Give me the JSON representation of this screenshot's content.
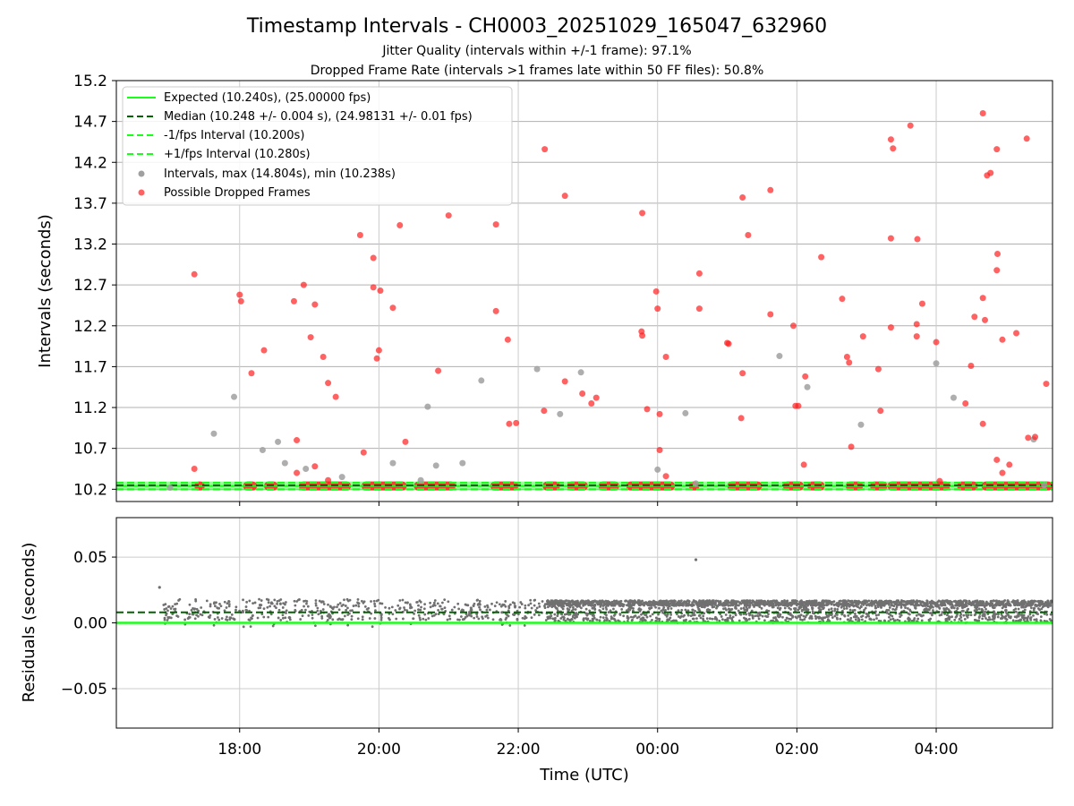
{
  "figure": {
    "title": "Timestamp Intervals - CH0003_20251029_165047_632960",
    "subtitle1": "Jitter Quality (intervals within +/-1 frame): 97.1%",
    "subtitle2": "Dropped Frame Rate (intervals >1 frames late within 50 FF files): 50.8%"
  },
  "colors": {
    "expected": "#1aff1a",
    "median": "#006400",
    "intervals": "#a0a0a0",
    "dropped": "#ff2020",
    "residuals": "#707070",
    "grid": "#b0b0b0"
  },
  "chart_data": [
    {
      "type": "scatter",
      "title": "Timestamp Intervals",
      "xlabel": "",
      "ylabel": "Intervals (seconds)",
      "xlim_hours": [
        16.23,
        29.67
      ],
      "ylim": [
        10.05,
        15.2
      ],
      "y_ticks": [
        "10.2",
        "10.7",
        "11.2",
        "11.7",
        "12.2",
        "12.7",
        "13.2",
        "13.7",
        "14.2",
        "14.7",
        "15.2"
      ],
      "y_tick_values": [
        10.2,
        10.7,
        11.2,
        11.7,
        12.2,
        12.7,
        13.2,
        13.7,
        14.2,
        14.7,
        15.2
      ],
      "x_ticks": [
        "18:00",
        "20:00",
        "22:00",
        "00:00",
        "02:00",
        "04:00"
      ],
      "x_tick_values": [
        18,
        20,
        22,
        24,
        26,
        28
      ],
      "legend_position": "top-left",
      "legend": [
        {
          "label": "Expected (10.240s), (25.00000 fps)",
          "style": "solid",
          "color": "#1aff1a"
        },
        {
          "label": "Median (10.248 +/- 0.004 s), (24.98131 +/- 0.01 fps)",
          "style": "dashed",
          "color": "#006400"
        },
        {
          "label": "-1/fps Interval (10.200s)",
          "style": "dashed",
          "color": "#1aff1a"
        },
        {
          "label": "+1/fps Interval (10.280s)",
          "style": "dashed",
          "color": "#1aff1a"
        },
        {
          "label": "Intervals, max (14.804s), min (10.238s)",
          "style": "marker",
          "color": "#a0a0a0"
        },
        {
          "label": "Possible Dropped Frames",
          "style": "marker",
          "color": "#ff2020"
        }
      ],
      "lines": {
        "expected": 10.24,
        "median": 10.248,
        "minus_one": 10.2,
        "plus_one": 10.28
      },
      "baseline_y": 10.24,
      "baseline_gray_spans": [
        [
          16.23,
          17.4
        ],
        [
          17.4,
          18.0
        ],
        [
          18.0,
          30.0
        ]
      ],
      "baseline_red_spans": [
        [
          17.35,
          17.5
        ],
        [
          18.05,
          18.25
        ],
        [
          18.35,
          18.55
        ],
        [
          18.85,
          19.6
        ],
        [
          19.75,
          20.4
        ],
        [
          20.5,
          21.1
        ],
        [
          21.6,
          22.0
        ],
        [
          22.35,
          22.6
        ],
        [
          22.7,
          23.0
        ],
        [
          23.15,
          23.45
        ],
        [
          23.55,
          24.25
        ],
        [
          24.45,
          24.6
        ],
        [
          25.0,
          25.5
        ],
        [
          25.8,
          26.1
        ],
        [
          26.15,
          26.4
        ],
        [
          26.7,
          26.95
        ],
        [
          27.05,
          27.3
        ],
        [
          27.3,
          28.2
        ],
        [
          28.3,
          28.6
        ],
        [
          28.65,
          29.67
        ]
      ],
      "gray_points": [
        {
          "x": 17.0,
          "y": 10.22
        },
        {
          "x": 17.63,
          "y": 10.88
        },
        {
          "x": 17.92,
          "y": 11.33
        },
        {
          "x": 18.33,
          "y": 10.68
        },
        {
          "x": 18.55,
          "y": 10.78
        },
        {
          "x": 18.65,
          "y": 10.52
        },
        {
          "x": 18.95,
          "y": 10.45
        },
        {
          "x": 19.47,
          "y": 10.35
        },
        {
          "x": 20.2,
          "y": 10.52
        },
        {
          "x": 20.6,
          "y": 10.31
        },
        {
          "x": 20.7,
          "y": 11.21
        },
        {
          "x": 20.82,
          "y": 10.49
        },
        {
          "x": 21.2,
          "y": 10.52
        },
        {
          "x": 21.47,
          "y": 11.53
        },
        {
          "x": 22.27,
          "y": 11.67
        },
        {
          "x": 22.6,
          "y": 11.12
        },
        {
          "x": 22.9,
          "y": 11.63
        },
        {
          "x": 24.0,
          "y": 10.44
        },
        {
          "x": 24.4,
          "y": 11.13
        },
        {
          "x": 24.55,
          "y": 10.27
        },
        {
          "x": 25.75,
          "y": 11.83
        },
        {
          "x": 26.15,
          "y": 11.45
        },
        {
          "x": 26.92,
          "y": 10.99
        },
        {
          "x": 28.0,
          "y": 11.74
        },
        {
          "x": 28.25,
          "y": 11.32
        },
        {
          "x": 29.4,
          "y": 10.81
        },
        {
          "x": 29.55,
          "y": 10.25
        }
      ],
      "dropped_points": [
        {
          "x": 17.35,
          "y": 12.83
        },
        {
          "x": 17.35,
          "y": 10.45
        },
        {
          "x": 18.0,
          "y": 12.58
        },
        {
          "x": 18.02,
          "y": 12.5
        },
        {
          "x": 18.17,
          "y": 11.62
        },
        {
          "x": 18.35,
          "y": 11.9
        },
        {
          "x": 18.78,
          "y": 12.5
        },
        {
          "x": 18.82,
          "y": 10.8
        },
        {
          "x": 18.82,
          "y": 10.4
        },
        {
          "x": 18.92,
          "y": 12.7
        },
        {
          "x": 19.02,
          "y": 12.06
        },
        {
          "x": 19.08,
          "y": 12.46
        },
        {
          "x": 19.08,
          "y": 10.48
        },
        {
          "x": 19.2,
          "y": 11.82
        },
        {
          "x": 19.27,
          "y": 11.5
        },
        {
          "x": 19.27,
          "y": 10.31
        },
        {
          "x": 19.38,
          "y": 11.33
        },
        {
          "x": 19.73,
          "y": 13.31
        },
        {
          "x": 19.78,
          "y": 10.65
        },
        {
          "x": 19.92,
          "y": 13.03
        },
        {
          "x": 19.92,
          "y": 12.67
        },
        {
          "x": 19.97,
          "y": 11.8
        },
        {
          "x": 20.0,
          "y": 11.9
        },
        {
          "x": 20.02,
          "y": 12.63
        },
        {
          "x": 20.2,
          "y": 12.42
        },
        {
          "x": 20.3,
          "y": 13.43
        },
        {
          "x": 20.38,
          "y": 10.78
        },
        {
          "x": 20.85,
          "y": 11.65
        },
        {
          "x": 21.0,
          "y": 13.55
        },
        {
          "x": 21.68,
          "y": 13.44
        },
        {
          "x": 21.68,
          "y": 12.38
        },
        {
          "x": 21.85,
          "y": 12.03
        },
        {
          "x": 21.87,
          "y": 11.0
        },
        {
          "x": 21.97,
          "y": 11.01
        },
        {
          "x": 22.38,
          "y": 14.36
        },
        {
          "x": 22.37,
          "y": 11.16
        },
        {
          "x": 22.67,
          "y": 13.79
        },
        {
          "x": 22.67,
          "y": 11.52
        },
        {
          "x": 22.92,
          "y": 11.37
        },
        {
          "x": 23.05,
          "y": 11.25
        },
        {
          "x": 23.12,
          "y": 11.32
        },
        {
          "x": 23.78,
          "y": 13.58
        },
        {
          "x": 23.77,
          "y": 12.13
        },
        {
          "x": 23.78,
          "y": 12.08
        },
        {
          "x": 23.85,
          "y": 11.18
        },
        {
          "x": 23.98,
          "y": 12.62
        },
        {
          "x": 24.03,
          "y": 11.12
        },
        {
          "x": 24.03,
          "y": 10.68
        },
        {
          "x": 24.12,
          "y": 11.82
        },
        {
          "x": 24.12,
          "y": 10.36
        },
        {
          "x": 24.0,
          "y": 12.41
        },
        {
          "x": 24.6,
          "y": 12.84
        },
        {
          "x": 24.6,
          "y": 12.41
        },
        {
          "x": 25.0,
          "y": 11.99
        },
        {
          "x": 25.02,
          "y": 11.98
        },
        {
          "x": 25.2,
          "y": 11.07
        },
        {
          "x": 25.22,
          "y": 13.77
        },
        {
          "x": 25.22,
          "y": 11.62
        },
        {
          "x": 25.3,
          "y": 13.31
        },
        {
          "x": 25.62,
          "y": 13.86
        },
        {
          "x": 25.62,
          "y": 12.34
        },
        {
          "x": 25.95,
          "y": 12.2
        },
        {
          "x": 25.98,
          "y": 11.22
        },
        {
          "x": 26.02,
          "y": 11.22
        },
        {
          "x": 26.12,
          "y": 11.58
        },
        {
          "x": 26.1,
          "y": 10.5
        },
        {
          "x": 26.35,
          "y": 13.04
        },
        {
          "x": 26.65,
          "y": 12.53
        },
        {
          "x": 26.72,
          "y": 11.82
        },
        {
          "x": 26.75,
          "y": 11.75
        },
        {
          "x": 26.78,
          "y": 10.72
        },
        {
          "x": 26.95,
          "y": 12.07
        },
        {
          "x": 27.17,
          "y": 11.67
        },
        {
          "x": 27.2,
          "y": 11.16
        },
        {
          "x": 27.35,
          "y": 14.48
        },
        {
          "x": 27.38,
          "y": 14.37
        },
        {
          "x": 27.35,
          "y": 12.18
        },
        {
          "x": 27.35,
          "y": 13.27
        },
        {
          "x": 27.63,
          "y": 14.65
        },
        {
          "x": 27.73,
          "y": 13.26
        },
        {
          "x": 27.72,
          "y": 12.22
        },
        {
          "x": 27.72,
          "y": 12.07
        },
        {
          "x": 27.8,
          "y": 12.47
        },
        {
          "x": 28.0,
          "y": 12.0
        },
        {
          "x": 28.05,
          "y": 10.3
        },
        {
          "x": 28.42,
          "y": 11.25
        },
        {
          "x": 28.5,
          "y": 11.71
        },
        {
          "x": 28.55,
          "y": 12.31
        },
        {
          "x": 28.67,
          "y": 14.8
        },
        {
          "x": 28.73,
          "y": 14.04
        },
        {
          "x": 28.78,
          "y": 14.07
        },
        {
          "x": 28.67,
          "y": 12.54
        },
        {
          "x": 28.7,
          "y": 12.27
        },
        {
          "x": 28.67,
          "y": 11.0
        },
        {
          "x": 28.87,
          "y": 14.36
        },
        {
          "x": 28.88,
          "y": 13.08
        },
        {
          "x": 28.87,
          "y": 12.88
        },
        {
          "x": 28.95,
          "y": 12.03
        },
        {
          "x": 28.87,
          "y": 10.56
        },
        {
          "x": 28.95,
          "y": 10.4
        },
        {
          "x": 29.05,
          "y": 10.5
        },
        {
          "x": 29.15,
          "y": 12.11
        },
        {
          "x": 29.3,
          "y": 14.49
        },
        {
          "x": 29.32,
          "y": 10.83
        },
        {
          "x": 29.42,
          "y": 10.84
        },
        {
          "x": 29.58,
          "y": 11.49
        }
      ]
    },
    {
      "type": "scatter",
      "title": "",
      "xlabel": "Time (UTC)",
      "ylabel": "Residuals (seconds)",
      "xlim_hours": [
        16.23,
        29.67
      ],
      "ylim": [
        -0.08,
        0.08
      ],
      "y_ticks": [
        "−0.05",
        "0.00",
        "0.05"
      ],
      "y_tick_values": [
        -0.05,
        0.0,
        0.05
      ],
      "x_ticks": [
        "18:00",
        "20:00",
        "22:00",
        "00:00",
        "02:00",
        "04:00"
      ],
      "x_tick_values": [
        18,
        20,
        22,
        24,
        26,
        28
      ],
      "lines": {
        "zero": 0.0,
        "median": 0.008
      },
      "residual_bands": [
        {
          "x_start": 16.9,
          "x_end": 22.4,
          "y_min": -0.003,
          "y_max": 0.018,
          "density": "sparse"
        },
        {
          "x_start": 22.4,
          "x_end": 29.67,
          "y_min": 0.0,
          "y_max": 0.017,
          "density": "dense"
        }
      ],
      "residual_outliers": [
        {
          "x": 16.85,
          "y": 0.027
        },
        {
          "x": 24.55,
          "y": 0.048
        }
      ]
    }
  ]
}
